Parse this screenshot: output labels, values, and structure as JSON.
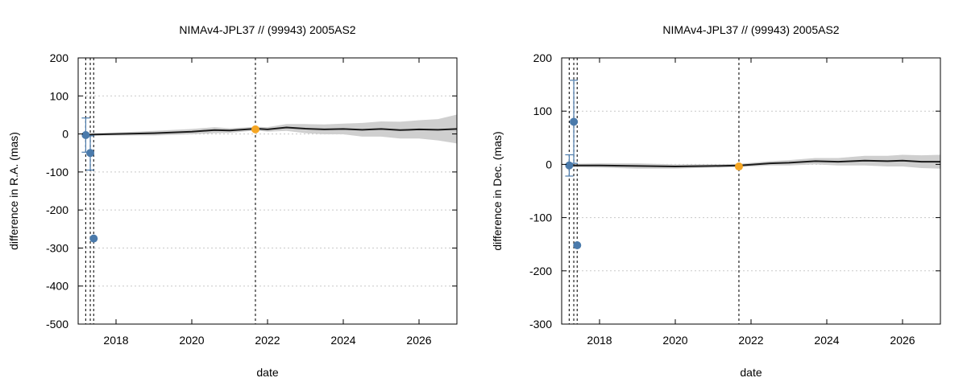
{
  "chart_data": [
    {
      "type": "scatter",
      "title": "NIMAv4-JPL37 // (99943) 2005AS2",
      "xlabel": "date",
      "ylabel": "difference in R.A. (mas)",
      "xlim": [
        2017.0,
        2027.0
      ],
      "ylim": [
        -500,
        200
      ],
      "xticks": [
        2018,
        2020,
        2022,
        2024,
        2026
      ],
      "xtick_labels": [
        "2018",
        "2020",
        "2022",
        "2024",
        "2026"
      ],
      "yticks": [
        -500,
        -400,
        -300,
        -200,
        -100,
        0,
        100,
        200
      ],
      "ytick_labels": [
        "-500",
        "-400",
        "-300",
        "-200",
        "-100",
        "0",
        "100",
        "200"
      ],
      "grid": true,
      "vlines": [
        2017.2,
        2017.32,
        2017.41,
        2021.68
      ],
      "prediction": {
        "x": [
          2017.2,
          2018.0,
          2019.0,
          2020.0,
          2020.6,
          2021.0,
          2021.7,
          2022.0,
          2022.5,
          2023.0,
          2023.5,
          2024.0,
          2024.5,
          2025.0,
          2025.5,
          2026.0,
          2026.5,
          2027.0
        ],
        "y": [
          -2,
          0,
          2,
          6,
          10,
          9,
          14,
          12,
          17,
          14,
          12,
          13,
          11,
          13,
          10,
          12,
          11,
          13
        ],
        "band": [
          3,
          4,
          6,
          7,
          8,
          6,
          5,
          6,
          9,
          12,
          13,
          14,
          18,
          20,
          22,
          24,
          28,
          38
        ]
      },
      "series": [
        {
          "name": "",
          "color": "#4a7aab",
          "x": [
            2017.2,
            2017.32,
            2017.41
          ],
          "y": [
            -3,
            -50,
            -275
          ],
          "err": [
            45,
            45,
            4
          ]
        },
        {
          "name": "",
          "color": "#f5a623",
          "x": [
            2021.68
          ],
          "y": [
            12
          ],
          "err": [
            3
          ]
        }
      ]
    },
    {
      "type": "scatter",
      "title": "NIMAv4-JPL37 // (99943) 2005AS2",
      "xlabel": "date",
      "ylabel": "difference in Dec. (mas)",
      "xlim": [
        2017.0,
        2027.0
      ],
      "ylim": [
        -300,
        200
      ],
      "xticks": [
        2018,
        2020,
        2022,
        2024,
        2026
      ],
      "xtick_labels": [
        "2018",
        "2020",
        "2022",
        "2024",
        "2026"
      ],
      "yticks": [
        -300,
        -200,
        -100,
        0,
        100,
        200
      ],
      "ytick_labels": [
        "-300",
        "-200",
        "-100",
        "0",
        "100",
        "200"
      ],
      "grid": true,
      "vlines": [
        2017.2,
        2017.32,
        2017.41,
        2021.68
      ],
      "prediction": {
        "x": [
          2017.2,
          2018.0,
          2019.0,
          2020.0,
          2021.0,
          2021.7,
          2022.5,
          2023.0,
          2023.7,
          2024.3,
          2025.0,
          2025.6,
          2026.0,
          2026.5,
          2027.0
        ],
        "y": [
          -2,
          -2,
          -3,
          -4,
          -3,
          -2,
          2,
          3,
          6,
          5,
          7,
          6,
          7,
          5,
          5
        ],
        "band": [
          3,
          4,
          5,
          4,
          3,
          3,
          4,
          5,
          6,
          7,
          9,
          10,
          11,
          12,
          13
        ]
      },
      "series": [
        {
          "name": "",
          "color": "#4a7aab",
          "x": [
            2017.2,
            2017.32,
            2017.41
          ],
          "y": [
            -2,
            80,
            -152
          ],
          "err": [
            20,
            78,
            4
          ]
        },
        {
          "name": "",
          "color": "#f5a623",
          "x": [
            2021.68
          ],
          "y": [
            -4
          ],
          "err": [
            3
          ]
        }
      ]
    }
  ]
}
